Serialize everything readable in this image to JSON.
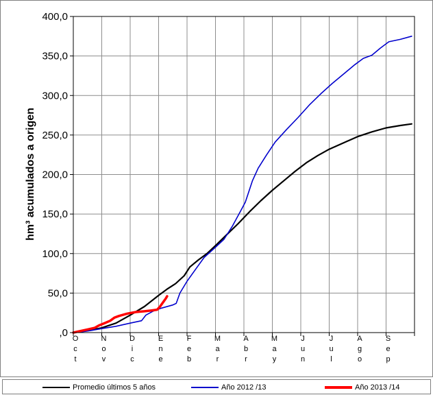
{
  "chart_data": {
    "type": "line",
    "ylabel": "hm³ acumulados a origen",
    "ylim": [
      0,
      400
    ],
    "y_ticks": [
      ",0",
      "50,0",
      "100,0",
      "150,0",
      "200,0",
      "250,0",
      "300,0",
      "350,0",
      "400,0"
    ],
    "y_tick_values": [
      0,
      50,
      100,
      150,
      200,
      250,
      300,
      350,
      400
    ],
    "x_months": [
      "Oct",
      "Nov",
      "Dic",
      "Ene",
      "Feb",
      "Mar",
      "Abr",
      "May",
      "Jun",
      "Jul",
      "Ago",
      "Sep"
    ],
    "xlim": [
      0,
      12
    ],
    "grid": true,
    "legend_placement": "bottom",
    "series": [
      {
        "name": "Promedio últimos 5 años",
        "color": "#000000",
        "points": [
          [
            0,
            0
          ],
          [
            0.3,
            1.5
          ],
          [
            0.6,
            3
          ],
          [
            1.0,
            6
          ],
          [
            1.5,
            12
          ],
          [
            2.0,
            22
          ],
          [
            2.5,
            33
          ],
          [
            3.0,
            47
          ],
          [
            3.3,
            55
          ],
          [
            3.6,
            62
          ],
          [
            3.9,
            72
          ],
          [
            4.1,
            83
          ],
          [
            4.4,
            92
          ],
          [
            4.7,
            100
          ],
          [
            5.0,
            110
          ],
          [
            5.4,
            124
          ],
          [
            5.8,
            138
          ],
          [
            6.2,
            153
          ],
          [
            6.6,
            167
          ],
          [
            7.0,
            180
          ],
          [
            7.4,
            192
          ],
          [
            7.8,
            204
          ],
          [
            8.2,
            215
          ],
          [
            8.6,
            224
          ],
          [
            9.0,
            232
          ],
          [
            9.5,
            240
          ],
          [
            10.0,
            248
          ],
          [
            10.5,
            254
          ],
          [
            11.0,
            259
          ],
          [
            11.5,
            262
          ],
          [
            11.9,
            264
          ]
        ]
      },
      {
        "name": "Año 2012 /13",
        "color": "#0000cc",
        "points": [
          [
            0,
            0
          ],
          [
            0.3,
            1
          ],
          [
            0.6,
            2.5
          ],
          [
            1.0,
            5
          ],
          [
            1.5,
            8
          ],
          [
            2.0,
            12
          ],
          [
            2.4,
            15
          ],
          [
            2.55,
            22
          ],
          [
            2.8,
            27
          ],
          [
            3.1,
            31
          ],
          [
            3.5,
            35
          ],
          [
            3.62,
            37
          ],
          [
            3.75,
            50
          ],
          [
            4.0,
            65
          ],
          [
            4.3,
            80
          ],
          [
            4.6,
            95
          ],
          [
            5.0,
            108
          ],
          [
            5.3,
            118
          ],
          [
            5.6,
            135
          ],
          [
            5.9,
            155
          ],
          [
            6.05,
            165
          ],
          [
            6.3,
            192
          ],
          [
            6.5,
            208
          ],
          [
            6.8,
            225
          ],
          [
            7.1,
            241
          ],
          [
            7.5,
            257
          ],
          [
            7.9,
            272
          ],
          [
            8.3,
            288
          ],
          [
            8.7,
            302
          ],
          [
            9.1,
            315
          ],
          [
            9.5,
            327
          ],
          [
            9.9,
            339
          ],
          [
            10.2,
            347
          ],
          [
            10.5,
            351
          ],
          [
            10.8,
            360
          ],
          [
            11.1,
            368
          ],
          [
            11.5,
            371
          ],
          [
            11.9,
            375
          ]
        ]
      },
      {
        "name": "Año 2013 /14",
        "color": "#ff0000",
        "points": [
          [
            0,
            0
          ],
          [
            0.25,
            2
          ],
          [
            0.5,
            4
          ],
          [
            0.75,
            6
          ],
          [
            0.9,
            9
          ],
          [
            1.1,
            12
          ],
          [
            1.3,
            15
          ],
          [
            1.45,
            19
          ],
          [
            1.6,
            21
          ],
          [
            1.9,
            24
          ],
          [
            2.2,
            26
          ],
          [
            2.5,
            27
          ],
          [
            2.75,
            28
          ],
          [
            2.95,
            29
          ],
          [
            3.05,
            33
          ],
          [
            3.15,
            38
          ],
          [
            3.25,
            43
          ],
          [
            3.3,
            46
          ]
        ]
      }
    ]
  }
}
